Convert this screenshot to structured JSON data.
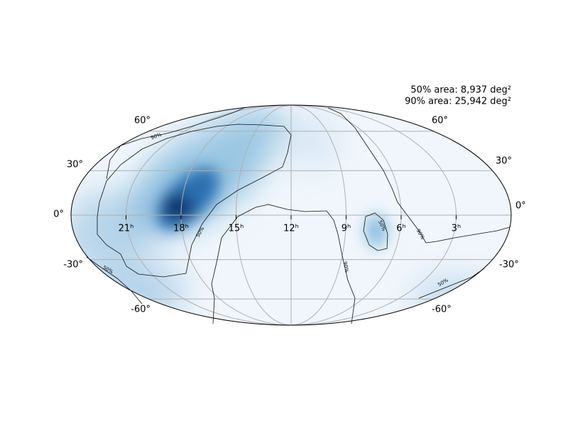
{
  "annotations": [
    "50% area: 8,937 deg²",
    "90% area: 25,942 deg²"
  ],
  "lat_labels_left": [
    "60°",
    "30°",
    "0°",
    "-30°",
    "-60°"
  ],
  "lat_labels_right": [
    "60°",
    "30°",
    "0°",
    "-30°",
    "-60°"
  ],
  "ra_labels": [
    "21ʰ",
    "18ʰ",
    "15ʰ",
    "12ʰ",
    "9ʰ",
    "6ʰ",
    "3ʰ"
  ],
  "contour_labels": [
    "90%",
    "50%",
    "50%",
    "90%",
    "50%",
    "90%",
    "50%"
  ]
}
